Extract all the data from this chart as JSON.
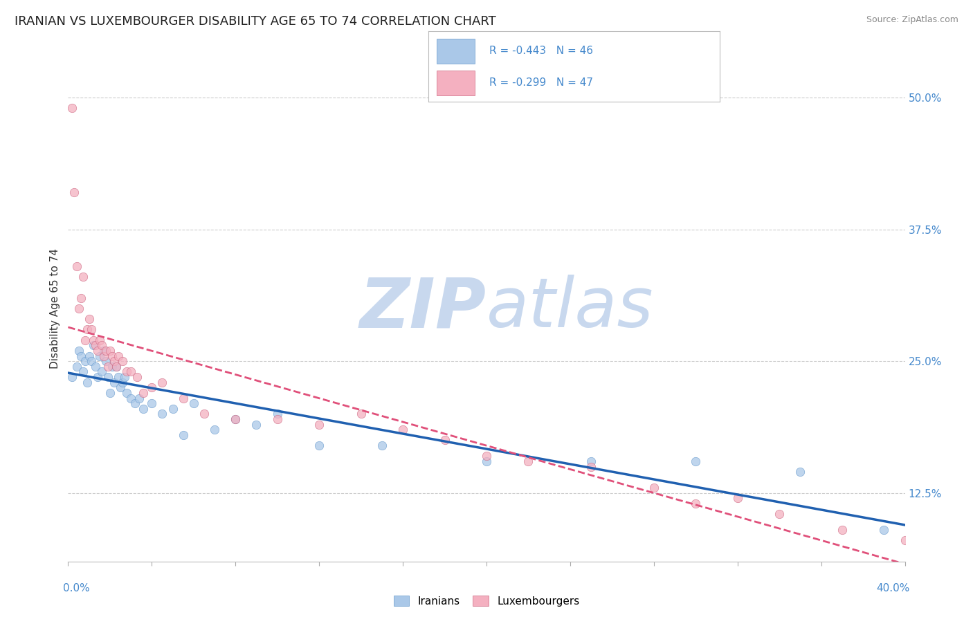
{
  "title": "IRANIAN VS LUXEMBOURGER DISABILITY AGE 65 TO 74 CORRELATION CHART",
  "source": "Source: ZipAtlas.com",
  "ylabel": "Disability Age 65 to 74",
  "ytick_labels": [
    "12.5%",
    "25.0%",
    "37.5%",
    "50.0%"
  ],
  "ytick_values": [
    0.125,
    0.25,
    0.375,
    0.5
  ],
  "xmin": 0.0,
  "xmax": 0.4,
  "ymin": 0.06,
  "ymax": 0.54,
  "legend_entries": [
    {
      "label": "R = -0.443   N = 46",
      "color": "#adc9e8"
    },
    {
      "label": "R = -0.299   N = 47",
      "color": "#f4b8c8"
    }
  ],
  "iranian_scatter_color": "#aac8e8",
  "luxembourger_scatter_color": "#f4b0c0",
  "iranian_line_color": "#2060b0",
  "luxembourger_line_color": "#e0507a",
  "watermark_zip_color": "#c8d8ee",
  "watermark_atlas_color": "#c8d8ee",
  "background_color": "#ffffff",
  "grid_color": "#cccccc",
  "title_fontsize": 13,
  "axis_label_fontsize": 11,
  "tick_fontsize": 11,
  "iranians_x": [
    0.002,
    0.004,
    0.005,
    0.006,
    0.007,
    0.008,
    0.009,
    0.01,
    0.011,
    0.012,
    0.013,
    0.014,
    0.015,
    0.016,
    0.017,
    0.018,
    0.019,
    0.02,
    0.021,
    0.022,
    0.023,
    0.024,
    0.025,
    0.026,
    0.027,
    0.028,
    0.03,
    0.032,
    0.034,
    0.036,
    0.04,
    0.045,
    0.05,
    0.055,
    0.06,
    0.07,
    0.08,
    0.09,
    0.1,
    0.12,
    0.15,
    0.2,
    0.25,
    0.3,
    0.35,
    0.39
  ],
  "iranians_y": [
    0.235,
    0.245,
    0.26,
    0.255,
    0.24,
    0.25,
    0.23,
    0.255,
    0.25,
    0.265,
    0.245,
    0.235,
    0.255,
    0.24,
    0.26,
    0.25,
    0.235,
    0.22,
    0.245,
    0.23,
    0.245,
    0.235,
    0.225,
    0.23,
    0.235,
    0.22,
    0.215,
    0.21,
    0.215,
    0.205,
    0.21,
    0.2,
    0.205,
    0.18,
    0.21,
    0.185,
    0.195,
    0.19,
    0.2,
    0.17,
    0.17,
    0.155,
    0.155,
    0.155,
    0.145,
    0.09
  ],
  "luxembourgers_x": [
    0.002,
    0.003,
    0.004,
    0.005,
    0.006,
    0.007,
    0.008,
    0.009,
    0.01,
    0.011,
    0.012,
    0.013,
    0.014,
    0.015,
    0.016,
    0.017,
    0.018,
    0.019,
    0.02,
    0.021,
    0.022,
    0.023,
    0.024,
    0.026,
    0.028,
    0.03,
    0.033,
    0.036,
    0.04,
    0.045,
    0.055,
    0.065,
    0.08,
    0.1,
    0.12,
    0.14,
    0.16,
    0.18,
    0.2,
    0.22,
    0.25,
    0.28,
    0.3,
    0.32,
    0.34,
    0.37,
    0.4
  ],
  "luxembourgers_y": [
    0.49,
    0.41,
    0.34,
    0.3,
    0.31,
    0.33,
    0.27,
    0.28,
    0.29,
    0.28,
    0.27,
    0.265,
    0.26,
    0.27,
    0.265,
    0.255,
    0.26,
    0.245,
    0.26,
    0.255,
    0.25,
    0.245,
    0.255,
    0.25,
    0.24,
    0.24,
    0.235,
    0.22,
    0.225,
    0.23,
    0.215,
    0.2,
    0.195,
    0.195,
    0.19,
    0.2,
    0.185,
    0.175,
    0.16,
    0.155,
    0.15,
    0.13,
    0.115,
    0.12,
    0.105,
    0.09,
    0.08
  ]
}
